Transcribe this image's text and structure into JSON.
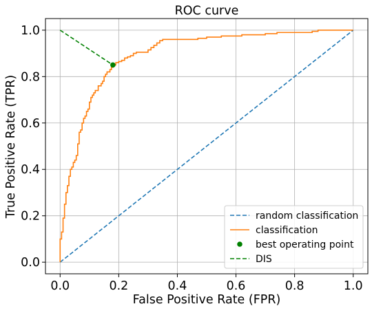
{
  "chart_data": {
    "type": "line",
    "title": "ROC curve",
    "xlabel": "False Positive Rate (FPR)",
    "ylabel": "True Positive Rate (TPR)",
    "xlim": [
      -0.05,
      1.05
    ],
    "ylim": [
      -0.05,
      1.05
    ],
    "x_ticks": [
      "0.0",
      "0.2",
      "0.4",
      "0.6",
      "0.8",
      "1.0"
    ],
    "y_ticks": [
      "0.0",
      "0.2",
      "0.4",
      "0.6",
      "0.8",
      "1.0"
    ],
    "grid": true,
    "legend_position": "bottom-right",
    "series": [
      {
        "name": "random classification",
        "style": "dashed",
        "color": "#1f77b4",
        "points": [
          [
            0,
            0
          ],
          [
            1,
            1
          ]
        ]
      },
      {
        "name": "classification",
        "style": "solid-step",
        "color": "#ff7f0e",
        "points": [
          [
            0,
            0
          ],
          [
            0,
            0.1
          ],
          [
            0.005,
            0.1
          ],
          [
            0.005,
            0.13
          ],
          [
            0.01,
            0.13
          ],
          [
            0.01,
            0.19
          ],
          [
            0.015,
            0.19
          ],
          [
            0.015,
            0.25
          ],
          [
            0.02,
            0.25
          ],
          [
            0.02,
            0.3
          ],
          [
            0.025,
            0.3
          ],
          [
            0.025,
            0.33
          ],
          [
            0.03,
            0.33
          ],
          [
            0.03,
            0.37
          ],
          [
            0.035,
            0.37
          ],
          [
            0.035,
            0.4
          ],
          [
            0.04,
            0.4
          ],
          [
            0.04,
            0.41
          ],
          [
            0.045,
            0.41
          ],
          [
            0.045,
            0.43
          ],
          [
            0.05,
            0.43
          ],
          [
            0.05,
            0.44
          ],
          [
            0.055,
            0.44
          ],
          [
            0.055,
            0.46
          ],
          [
            0.06,
            0.46
          ],
          [
            0.06,
            0.51
          ],
          [
            0.065,
            0.51
          ],
          [
            0.065,
            0.56
          ],
          [
            0.07,
            0.56
          ],
          [
            0.07,
            0.57
          ],
          [
            0.075,
            0.57
          ],
          [
            0.075,
            0.6
          ],
          [
            0.08,
            0.6
          ],
          [
            0.08,
            0.62
          ],
          [
            0.085,
            0.62
          ],
          [
            0.085,
            0.63
          ],
          [
            0.09,
            0.63
          ],
          [
            0.09,
            0.65
          ],
          [
            0.095,
            0.65
          ],
          [
            0.095,
            0.66
          ],
          [
            0.1,
            0.66
          ],
          [
            0.1,
            0.69
          ],
          [
            0.105,
            0.69
          ],
          [
            0.105,
            0.71
          ],
          [
            0.11,
            0.71
          ],
          [
            0.11,
            0.72
          ],
          [
            0.115,
            0.72
          ],
          [
            0.115,
            0.73
          ],
          [
            0.12,
            0.73
          ],
          [
            0.12,
            0.74
          ],
          [
            0.13,
            0.74
          ],
          [
            0.13,
            0.76
          ],
          [
            0.14,
            0.76
          ],
          [
            0.14,
            0.77
          ],
          [
            0.145,
            0.77
          ],
          [
            0.145,
            0.78
          ],
          [
            0.15,
            0.78
          ],
          [
            0.15,
            0.8
          ],
          [
            0.155,
            0.8
          ],
          [
            0.155,
            0.81
          ],
          [
            0.16,
            0.81
          ],
          [
            0.16,
            0.82
          ],
          [
            0.17,
            0.82
          ],
          [
            0.17,
            0.83
          ],
          [
            0.175,
            0.83
          ],
          [
            0.175,
            0.84
          ],
          [
            0.18,
            0.84
          ],
          [
            0.18,
            0.85
          ],
          [
            0.19,
            0.85
          ],
          [
            0.19,
            0.86
          ],
          [
            0.2,
            0.86
          ],
          [
            0.2,
            0.865
          ],
          [
            0.21,
            0.865
          ],
          [
            0.21,
            0.87
          ],
          [
            0.22,
            0.87
          ],
          [
            0.22,
            0.88
          ],
          [
            0.23,
            0.88
          ],
          [
            0.23,
            0.885
          ],
          [
            0.24,
            0.885
          ],
          [
            0.24,
            0.89
          ],
          [
            0.25,
            0.89
          ],
          [
            0.25,
            0.9
          ],
          [
            0.26,
            0.9
          ],
          [
            0.26,
            0.905
          ],
          [
            0.3,
            0.905
          ],
          [
            0.3,
            0.915
          ],
          [
            0.31,
            0.915
          ],
          [
            0.31,
            0.925
          ],
          [
            0.32,
            0.925
          ],
          [
            0.32,
            0.935
          ],
          [
            0.33,
            0.935
          ],
          [
            0.33,
            0.945
          ],
          [
            0.34,
            0.945
          ],
          [
            0.34,
            0.955
          ],
          [
            0.35,
            0.955
          ],
          [
            0.35,
            0.96
          ],
          [
            0.47,
            0.96
          ],
          [
            0.47,
            0.965
          ],
          [
            0.5,
            0.965
          ],
          [
            0.5,
            0.97
          ],
          [
            0.55,
            0.97
          ],
          [
            0.55,
            0.975
          ],
          [
            0.62,
            0.975
          ],
          [
            0.62,
            0.98
          ],
          [
            0.7,
            0.98
          ],
          [
            0.7,
            0.985
          ],
          [
            0.74,
            0.985
          ],
          [
            0.74,
            0.99
          ],
          [
            0.86,
            0.99
          ],
          [
            0.86,
            0.995
          ],
          [
            0.88,
            0.995
          ],
          [
            0.88,
            1.0
          ],
          [
            1.0,
            1.0
          ]
        ]
      },
      {
        "name": "best operating point",
        "style": "marker",
        "color": "#008000",
        "points": [
          [
            0.18,
            0.85
          ]
        ]
      },
      {
        "name": "DIS",
        "style": "dashed",
        "color": "#008000",
        "points": [
          [
            0,
            1
          ],
          [
            0.18,
            0.85
          ]
        ]
      }
    ]
  }
}
